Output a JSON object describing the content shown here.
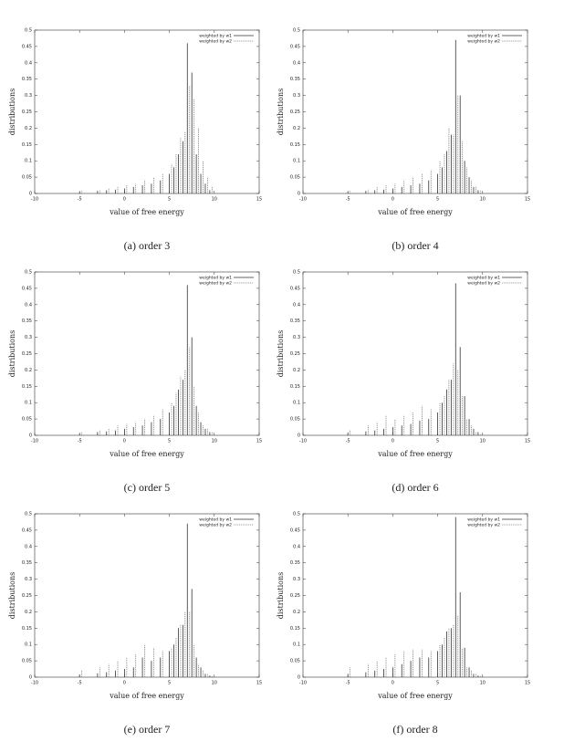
{
  "chart_data": [
    {
      "type": "impulse",
      "caption": "(a) order 3",
      "xlabel": "value of free energy",
      "ylabel": "distributions",
      "xlim": [
        -10,
        15
      ],
      "xticks": [
        -10,
        -5,
        0,
        5,
        10,
        15
      ],
      "ylim": [
        0,
        0.5
      ],
      "yticks": [
        0,
        0.05,
        0.1,
        0.15,
        0.2,
        0.25,
        0.3,
        0.35,
        0.4,
        0.45,
        0.5
      ],
      "legend": "upper right",
      "series": [
        {
          "name": "weighted by w1",
          "color": "#333333",
          "linestyle": "solid",
          "x": [
            -5,
            -3,
            -2,
            -1,
            0,
            1,
            2,
            3,
            4,
            5,
            5.5,
            6,
            6.5,
            7,
            7.5,
            8,
            8.5,
            9,
            9.5
          ],
          "values": [
            0.005,
            0.008,
            0.01,
            0.012,
            0.015,
            0.02,
            0.025,
            0.03,
            0.04,
            0.06,
            0.08,
            0.12,
            0.16,
            0.46,
            0.37,
            0.12,
            0.06,
            0.03,
            0.01
          ]
        },
        {
          "name": "weighted by w2",
          "color": "#888888",
          "linestyle": "dashed",
          "x": [
            -4.75,
            -2.75,
            -1.75,
            -0.75,
            0.25,
            1.25,
            2.25,
            3.25,
            4.25,
            5.25,
            5.75,
            6.25,
            6.75,
            7.25,
            7.75,
            8.25,
            8.75,
            9.25,
            9.75
          ],
          "values": [
            0.008,
            0.01,
            0.015,
            0.02,
            0.025,
            0.03,
            0.04,
            0.05,
            0.06,
            0.09,
            0.12,
            0.17,
            0.19,
            0.33,
            0.29,
            0.2,
            0.1,
            0.05,
            0.02
          ]
        }
      ]
    },
    {
      "type": "impulse",
      "caption": "(b) order 4",
      "xlabel": "value of free energy",
      "ylabel": "distributions",
      "xlim": [
        -10,
        15
      ],
      "xticks": [
        -10,
        -5,
        0,
        5,
        10,
        15
      ],
      "ylim": [
        0,
        0.5
      ],
      "yticks": [
        0,
        0.05,
        0.1,
        0.15,
        0.2,
        0.25,
        0.3,
        0.35,
        0.4,
        0.45,
        0.5
      ],
      "legend": "upper right",
      "series": [
        {
          "name": "weighted by w1",
          "color": "#333333",
          "linestyle": "solid",
          "x": [
            -5,
            -3,
            -2,
            -1,
            0,
            1,
            2,
            3,
            4,
            5,
            5.5,
            6,
            6.5,
            7,
            7.5,
            8,
            8.5,
            9,
            9.5
          ],
          "values": [
            0.005,
            0.008,
            0.01,
            0.012,
            0.015,
            0.02,
            0.025,
            0.03,
            0.04,
            0.06,
            0.08,
            0.13,
            0.18,
            0.47,
            0.3,
            0.1,
            0.05,
            0.02,
            0.01
          ]
        },
        {
          "name": "weighted by w2",
          "color": "#888888",
          "linestyle": "dashed",
          "x": [
            -4.75,
            -2.75,
            -1.75,
            -0.75,
            0.25,
            1.25,
            2.25,
            3.25,
            4.25,
            5.25,
            5.75,
            6.25,
            6.75,
            7.25,
            7.75,
            8.25,
            8.75,
            9.25,
            9.75
          ],
          "values": [
            0.008,
            0.012,
            0.02,
            0.025,
            0.03,
            0.04,
            0.05,
            0.06,
            0.07,
            0.1,
            0.12,
            0.2,
            0.18,
            0.3,
            0.16,
            0.08,
            0.04,
            0.02,
            0.01
          ]
        }
      ]
    },
    {
      "type": "impulse",
      "caption": "(c) order 5",
      "xlabel": "value of free energy",
      "ylabel": "distributions",
      "xlim": [
        -10,
        15
      ],
      "xticks": [
        -10,
        -5,
        0,
        5,
        10,
        15
      ],
      "ylim": [
        0,
        0.5
      ],
      "yticks": [
        0,
        0.05,
        0.1,
        0.15,
        0.2,
        0.25,
        0.3,
        0.35,
        0.4,
        0.45,
        0.5
      ],
      "legend": "upper right",
      "series": [
        {
          "name": "weighted by w1",
          "color": "#333333",
          "linestyle": "solid",
          "x": [
            -5,
            -3,
            -2,
            -1,
            0,
            1,
            2,
            3,
            4,
            5,
            5.5,
            6,
            6.5,
            7,
            7.5,
            8,
            8.5,
            9,
            9.5
          ],
          "values": [
            0.005,
            0.01,
            0.012,
            0.015,
            0.02,
            0.025,
            0.03,
            0.04,
            0.05,
            0.07,
            0.09,
            0.14,
            0.17,
            0.46,
            0.3,
            0.09,
            0.04,
            0.02,
            0.01
          ]
        },
        {
          "name": "weighted by w2",
          "color": "#888888",
          "linestyle": "dashed",
          "x": [
            -4.75,
            -2.75,
            -1.75,
            -0.75,
            0.25,
            1.25,
            2.25,
            3.25,
            4.25,
            5.25,
            5.75,
            6.25,
            6.75,
            7.25,
            7.75,
            8.25,
            8.75,
            9.25,
            9.75
          ],
          "values": [
            0.01,
            0.015,
            0.02,
            0.03,
            0.035,
            0.04,
            0.05,
            0.06,
            0.08,
            0.1,
            0.13,
            0.18,
            0.2,
            0.27,
            0.15,
            0.07,
            0.03,
            0.02,
            0.01
          ]
        }
      ]
    },
    {
      "type": "impulse",
      "caption": "(d) order 6",
      "xlabel": "value of free energy",
      "ylabel": "distributions",
      "xlim": [
        -10,
        15
      ],
      "xticks": [
        -10,
        -5,
        0,
        5,
        10,
        15
      ],
      "ylim": [
        0,
        0.5
      ],
      "yticks": [
        0,
        0.05,
        0.1,
        0.15,
        0.2,
        0.25,
        0.3,
        0.35,
        0.4,
        0.45,
        0.5
      ],
      "legend": "upper right",
      "series": [
        {
          "name": "weighted by w1",
          "color": "#333333",
          "linestyle": "solid",
          "x": [
            -5,
            -3,
            -2,
            -1,
            0,
            1,
            2,
            3,
            4,
            5,
            5.5,
            6,
            6.5,
            7,
            7.5,
            8,
            8.5,
            9,
            9.5
          ],
          "values": [
            0.008,
            0.012,
            0.015,
            0.02,
            0.025,
            0.03,
            0.035,
            0.045,
            0.05,
            0.07,
            0.1,
            0.14,
            0.17,
            0.465,
            0.27,
            0.12,
            0.05,
            0.02,
            0.01
          ]
        },
        {
          "name": "weighted by w2",
          "color": "#888888",
          "linestyle": "dashed",
          "x": [
            -4.75,
            -2.75,
            -1.75,
            -0.75,
            0.25,
            1.25,
            2.25,
            3.25,
            4.25,
            5.25,
            5.75,
            6.25,
            6.75,
            7.25,
            7.75,
            8.25,
            8.75,
            9.25,
            9.75
          ],
          "values": [
            0.015,
            0.03,
            0.04,
            0.06,
            0.05,
            0.06,
            0.07,
            0.09,
            0.08,
            0.1,
            0.12,
            0.17,
            0.22,
            0.2,
            0.12,
            0.05,
            0.03,
            0.01,
            0.005
          ]
        }
      ]
    },
    {
      "type": "impulse",
      "caption": "(e) order 7",
      "xlabel": "value of free energy",
      "ylabel": "distributions",
      "xlim": [
        -10,
        15
      ],
      "xticks": [
        -10,
        -5,
        0,
        5,
        10,
        15
      ],
      "ylim": [
        0,
        0.5
      ],
      "yticks": [
        0,
        0.05,
        0.1,
        0.15,
        0.2,
        0.25,
        0.3,
        0.35,
        0.4,
        0.45,
        0.5
      ],
      "legend": "upper right",
      "series": [
        {
          "name": "weighted by w1",
          "color": "#333333",
          "linestyle": "solid",
          "x": [
            -5,
            -3,
            -2,
            -1,
            0,
            1,
            2,
            3,
            4,
            5,
            5.5,
            6,
            6.5,
            7,
            7.5,
            8,
            8.5,
            9,
            9.5
          ],
          "values": [
            0.008,
            0.012,
            0.015,
            0.02,
            0.025,
            0.03,
            0.06,
            0.05,
            0.06,
            0.08,
            0.1,
            0.15,
            0.16,
            0.47,
            0.27,
            0.06,
            0.03,
            0.01,
            0.005
          ]
        },
        {
          "name": "weighted by w2",
          "color": "#888888",
          "linestyle": "dashed",
          "x": [
            -4.75,
            -2.75,
            -1.75,
            -0.75,
            0.25,
            1.25,
            2.25,
            3.25,
            4.25,
            5.25,
            5.75,
            6.25,
            6.75,
            7.25,
            7.75,
            8.25,
            8.75,
            9.25,
            9.75
          ],
          "values": [
            0.02,
            0.03,
            0.04,
            0.05,
            0.06,
            0.07,
            0.1,
            0.09,
            0.08,
            0.09,
            0.12,
            0.16,
            0.2,
            0.2,
            0.1,
            0.04,
            0.02,
            0.01,
            0.005
          ]
        }
      ]
    },
    {
      "type": "impulse",
      "caption": "(f) order 8",
      "xlabel": "value of free energy",
      "ylabel": "distributions",
      "xlim": [
        -10,
        15
      ],
      "xticks": [
        -10,
        -5,
        0,
        5,
        10,
        15
      ],
      "ylim": [
        0,
        0.5
      ],
      "yticks": [
        0,
        0.05,
        0.1,
        0.15,
        0.2,
        0.25,
        0.3,
        0.35,
        0.4,
        0.45,
        0.5
      ],
      "legend": "upper right",
      "series": [
        {
          "name": "weighted by w1",
          "color": "#333333",
          "linestyle": "solid",
          "x": [
            -5,
            -3,
            -2,
            -1,
            0,
            1,
            2,
            3,
            4,
            5,
            5.5,
            6,
            6.5,
            7,
            7.5,
            8,
            8.5,
            9,
            9.5
          ],
          "values": [
            0.01,
            0.015,
            0.02,
            0.025,
            0.03,
            0.04,
            0.05,
            0.06,
            0.06,
            0.08,
            0.1,
            0.14,
            0.15,
            0.49,
            0.26,
            0.09,
            0.03,
            0.01,
            0.005
          ]
        },
        {
          "name": "weighted by w2",
          "color": "#888888",
          "linestyle": "dashed",
          "x": [
            -4.75,
            -2.75,
            -1.75,
            -0.75,
            0.25,
            1.25,
            2.25,
            3.25,
            4.25,
            5.25,
            5.75,
            6.25,
            6.75,
            7.25,
            7.75,
            8.25,
            8.75,
            9.25,
            9.75
          ],
          "values": [
            0.03,
            0.04,
            0.05,
            0.06,
            0.07,
            0.08,
            0.085,
            0.085,
            0.08,
            0.1,
            0.12,
            0.15,
            0.16,
            0.19,
            0.09,
            0.03,
            0.02,
            0.01,
            0.005
          ]
        }
      ]
    }
  ]
}
